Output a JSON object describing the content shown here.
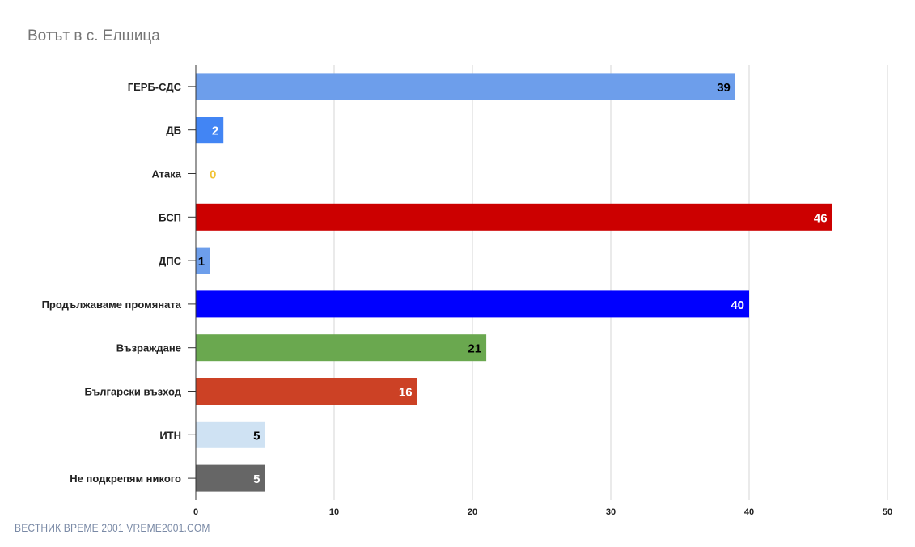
{
  "chart_title": "Вотът в с. Елшица",
  "watermark": "ВЕСТНИК ВРЕМЕ 2001  VREME2001.COM",
  "chart_data": {
    "type": "bar",
    "orientation": "horizontal",
    "title": "Вотът в с. Елшица",
    "xlabel": "",
    "ylabel": "",
    "xlim": [
      0,
      50
    ],
    "ticks": [
      0,
      10,
      20,
      30,
      40,
      50
    ],
    "grid": true,
    "legend": "none",
    "categories": [
      "ГЕРБ-СДС",
      "ДБ",
      "Атака",
      "БСП",
      "ДПС",
      "Продължаваме промяната",
      "Възраждане",
      "Български възход",
      "ИТН",
      "Не подкрепям никого"
    ],
    "values": [
      39,
      2,
      0,
      46,
      1,
      40,
      21,
      16,
      5,
      5
    ],
    "colors": [
      "#6d9eeb",
      "#4285f4",
      "#f1c232",
      "#cc0000",
      "#6d9eeb",
      "#0000ff",
      "#6aa84f",
      "#cc4125",
      "#cfe2f3",
      "#666666"
    ],
    "label_colors": [
      "#000000",
      "#ffffff",
      "#f1c232",
      "#ffffff",
      "#000000",
      "#ffffff",
      "#000000",
      "#ffffff",
      "#000000",
      "#ffffff"
    ]
  }
}
